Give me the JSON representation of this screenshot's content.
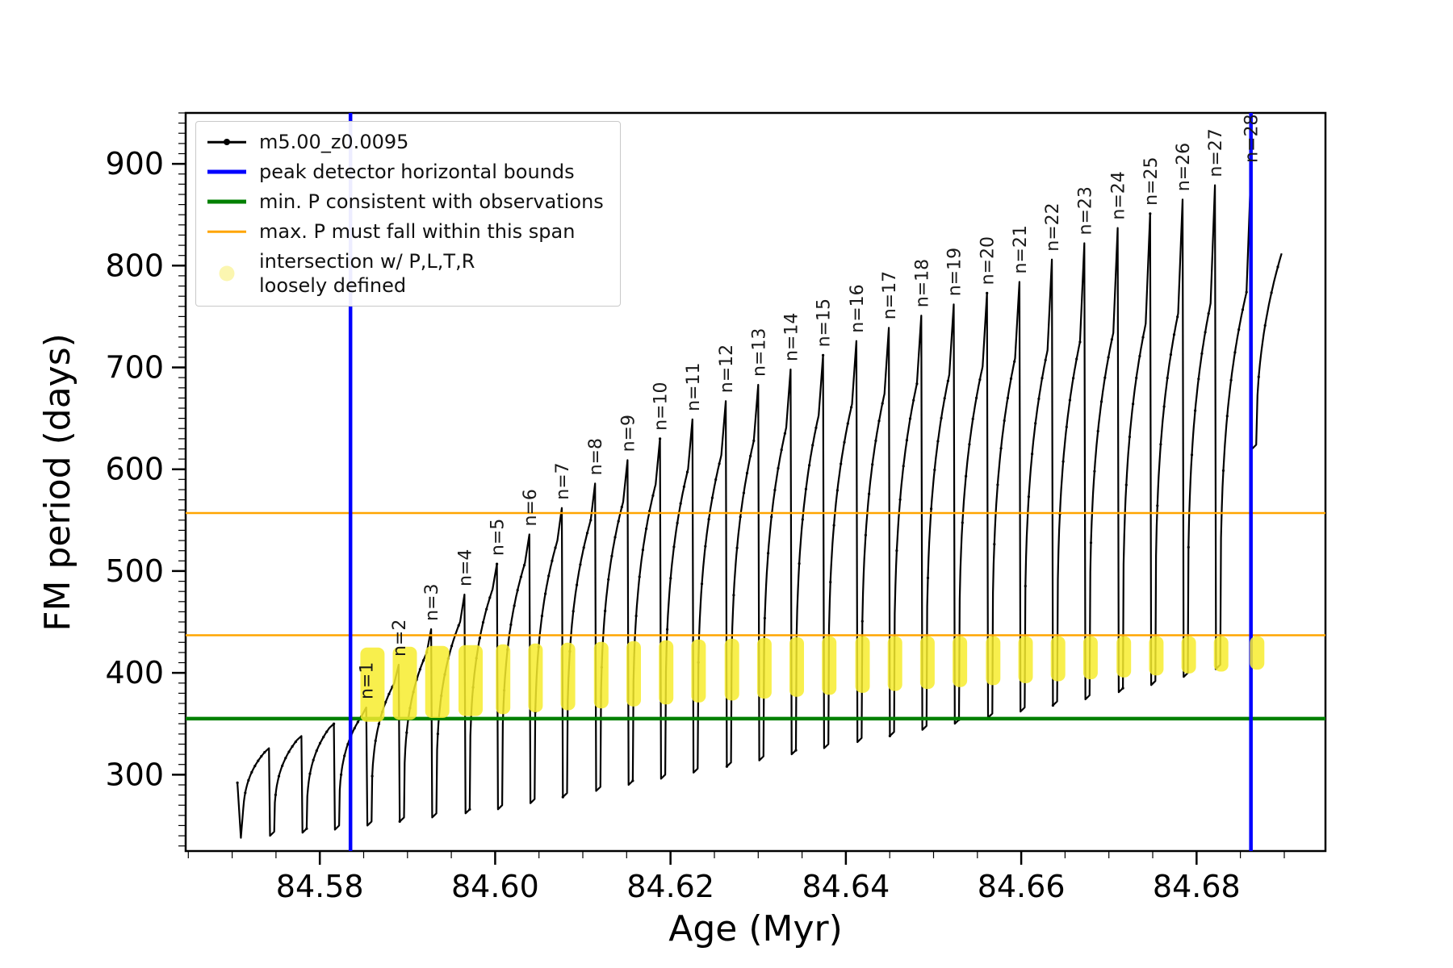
{
  "chart_data": {
    "type": "line",
    "title": "",
    "xlabel": "Age (Myr)",
    "ylabel": "FM period (days)",
    "xlim": [
      84.5647,
      84.6947
    ],
    "ylim": [
      225,
      950
    ],
    "xticks": [
      84.58,
      84.6,
      84.62,
      84.64,
      84.66,
      84.68
    ],
    "yticks": [
      300,
      400,
      500,
      600,
      700,
      800,
      900
    ],
    "x_minor": 0.005,
    "y_minor": 10,
    "grid": false,
    "series_name": "m5.00_z0.0095",
    "colors": {
      "series": "#000000",
      "blue": "#0000ff",
      "green": "#008000",
      "orange": "#ffa500",
      "yellow": "#f7ec2e",
      "yellow_legend": "#fbf6b0"
    },
    "vlines": [
      84.5835,
      84.6862
    ],
    "hline_green": 355,
    "hlines_orange": [
      437,
      557
    ],
    "curve_start": {
      "x": 84.5706,
      "y": 292
    },
    "first_trough": 238,
    "curve_end": {
      "x": 84.6897,
      "y": 812
    },
    "peaks": [
      {
        "label": null,
        "n": 0,
        "x": 84.5742,
        "hump": 322,
        "peak": 326,
        "drop": 240
      },
      {
        "label": null,
        "n": 0,
        "x": 84.5779,
        "hump": 334,
        "peak": 338,
        "drop": 243
      },
      {
        "label": null,
        "n": 0,
        "x": 84.5816,
        "hump": 346,
        "peak": 350,
        "drop": 246
      },
      {
        "label": "n=1",
        "n": 1,
        "x": 84.5853,
        "hump": 358,
        "peak": 366,
        "drop": 250
      },
      {
        "label": "n=2",
        "n": 2,
        "x": 84.589,
        "hump": 390,
        "peak": 408,
        "drop": 254
      },
      {
        "label": "n=3",
        "n": 3,
        "x": 84.5927,
        "hump": 420,
        "peak": 443,
        "drop": 258
      },
      {
        "label": "n=4",
        "n": 4,
        "x": 84.5965,
        "hump": 450,
        "peak": 477,
        "drop": 262
      },
      {
        "label": "n=5",
        "n": 5,
        "x": 84.6002,
        "hump": 482,
        "peak": 507,
        "drop": 266
      },
      {
        "label": "n=6",
        "n": 6,
        "x": 84.6039,
        "hump": 508,
        "peak": 536,
        "drop": 272
      },
      {
        "label": "n=7",
        "n": 7,
        "x": 84.6076,
        "hump": 530,
        "peak": 562,
        "drop": 278
      },
      {
        "label": "n=8",
        "n": 8,
        "x": 84.6114,
        "hump": 550,
        "peak": 586,
        "drop": 284
      },
      {
        "label": "n=9",
        "n": 9,
        "x": 84.6151,
        "hump": 568,
        "peak": 609,
        "drop": 290
      },
      {
        "label": "n=10",
        "n": 10,
        "x": 84.6188,
        "hump": 585,
        "peak": 630,
        "drop": 296
      },
      {
        "label": "n=11",
        "n": 11,
        "x": 84.6225,
        "hump": 600,
        "peak": 649,
        "drop": 302
      },
      {
        "label": "n=12",
        "n": 12,
        "x": 84.6263,
        "hump": 614,
        "peak": 667,
        "drop": 308
      },
      {
        "label": "n=13",
        "n": 13,
        "x": 84.63,
        "hump": 628,
        "peak": 683,
        "drop": 314
      },
      {
        "label": "n=14",
        "n": 14,
        "x": 84.6337,
        "hump": 641,
        "peak": 698,
        "drop": 320
      },
      {
        "label": "n=15",
        "n": 15,
        "x": 84.6374,
        "hump": 653,
        "peak": 712,
        "drop": 326
      },
      {
        "label": "n=16",
        "n": 16,
        "x": 84.6412,
        "hump": 664,
        "peak": 726,
        "drop": 332
      },
      {
        "label": "n=17",
        "n": 17,
        "x": 84.6449,
        "hump": 674,
        "peak": 739,
        "drop": 338
      },
      {
        "label": "n=18",
        "n": 18,
        "x": 84.6486,
        "hump": 684,
        "peak": 751,
        "drop": 344
      },
      {
        "label": "n=19",
        "n": 19,
        "x": 84.6523,
        "hump": 693,
        "peak": 762,
        "drop": 350
      },
      {
        "label": "n=20",
        "n": 20,
        "x": 84.6561,
        "hump": 701,
        "peak": 773,
        "drop": 356
      },
      {
        "label": "n=21",
        "n": 21,
        "x": 84.6598,
        "hump": 709,
        "peak": 784,
        "drop": 362
      },
      {
        "label": "n=22",
        "n": 22,
        "x": 84.6635,
        "hump": 717,
        "peak": 806,
        "drop": 368
      },
      {
        "label": "n=23",
        "n": 23,
        "x": 84.6672,
        "hump": 725,
        "peak": 822,
        "drop": 374
      },
      {
        "label": "n=24",
        "n": 24,
        "x": 84.671,
        "hump": 734,
        "peak": 837,
        "drop": 381
      },
      {
        "label": "n=25",
        "n": 25,
        "x": 84.6747,
        "hump": 743,
        "peak": 851,
        "drop": 388
      },
      {
        "label": "n=26",
        "n": 26,
        "x": 84.6784,
        "hump": 753,
        "peak": 865,
        "drop": 396
      },
      {
        "label": "n=27",
        "n": 27,
        "x": 84.6821,
        "hump": 763,
        "peak": 879,
        "drop": 404
      },
      {
        "label": "n=28",
        "n": 28,
        "x": 84.6862,
        "hump": 774,
        "peak": 893,
        "drop": 620
      }
    ],
    "legend": [
      {
        "label": "m5.00_z0.0095"
      },
      {
        "label": "peak detector horizontal bounds"
      },
      {
        "label": "min. P consistent with observations"
      },
      {
        "label": "max. P must fall within this span"
      },
      {
        "label": "intersection w/ P,L,T,R\nloosely defined"
      }
    ]
  }
}
